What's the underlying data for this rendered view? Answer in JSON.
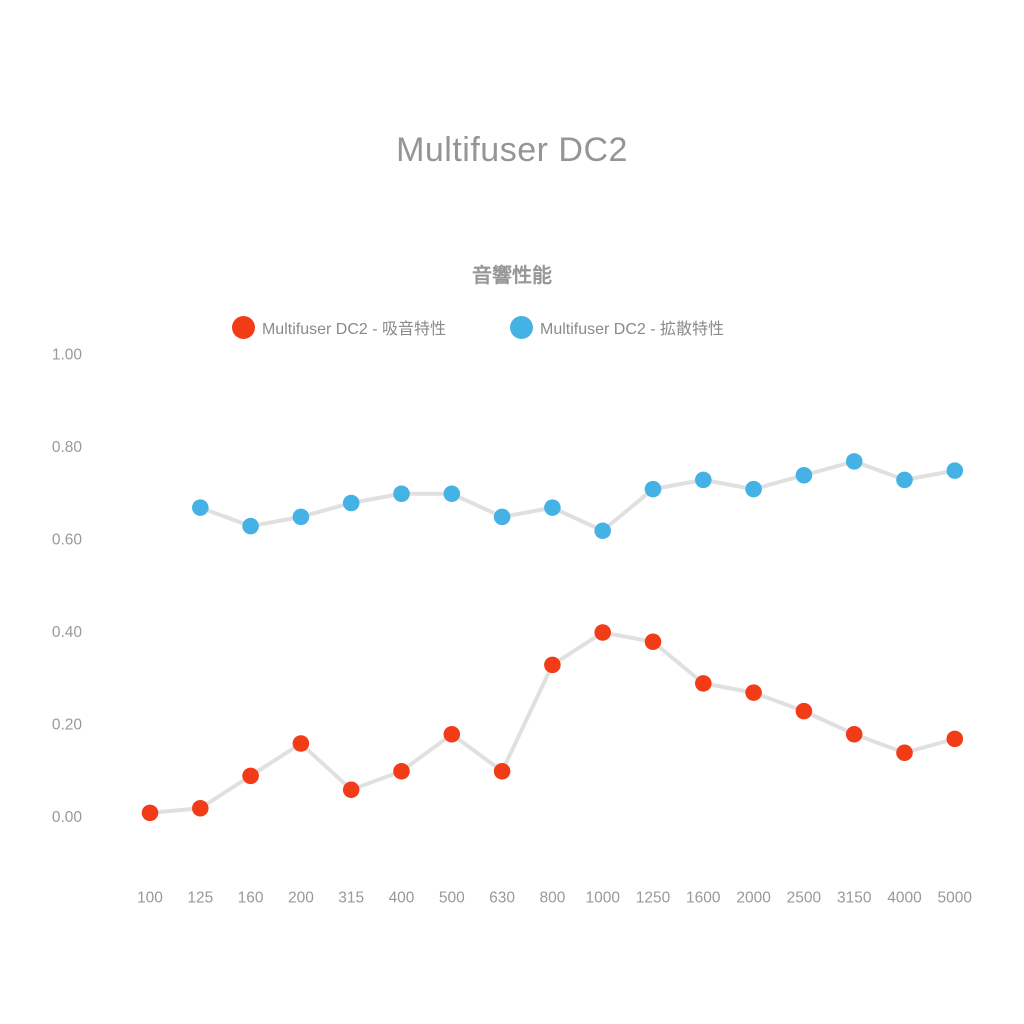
{
  "page": {
    "title": "Multifuser DC2"
  },
  "chart_data": {
    "type": "line",
    "title": "音響性能",
    "categories": [
      100,
      125,
      160,
      200,
      315,
      400,
      500,
      630,
      800,
      1000,
      1250,
      1600,
      2000,
      2500,
      3150,
      4000,
      5000
    ],
    "series": [
      {
        "name": "Multifuser DC2 - 吸音特性",
        "color": "#f23c17",
        "values": [
          0.01,
          0.02,
          0.09,
          0.16,
          0.06,
          0.1,
          0.18,
          0.1,
          0.33,
          0.4,
          0.38,
          0.29,
          0.27,
          0.23,
          0.18,
          0.14,
          0.17
        ]
      },
      {
        "name": "Multifuser DC2 - 拡散特性",
        "color": "#45b2e6",
        "values": [
          null,
          0.67,
          0.63,
          0.65,
          0.68,
          0.7,
          0.7,
          0.65,
          0.67,
          0.62,
          0.71,
          0.73,
          0.71,
          0.74,
          0.77,
          0.73,
          0.75
        ]
      }
    ],
    "yticks": [
      0.0,
      0.2,
      0.4,
      0.6,
      0.8,
      1.0
    ],
    "ylim": [
      0,
      1
    ],
    "xlabel": "",
    "ylabel": "",
    "grid": false,
    "legend_position": "top",
    "connector_line_color": "#e0e0e0",
    "text_color": "#999999",
    "background_color": "#ffffff"
  }
}
